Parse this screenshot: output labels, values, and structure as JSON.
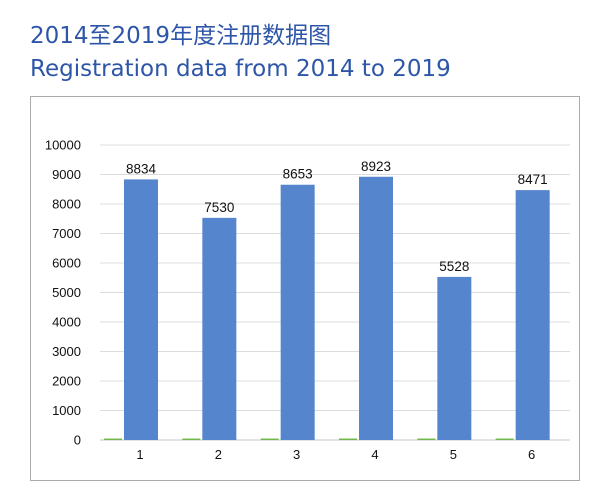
{
  "header": {
    "title_zh": "2014至2019年度注册数据图",
    "title_en": "Registration data from 2014 to 2019"
  },
  "chart_data": {
    "type": "bar",
    "categories": [
      "1",
      "2",
      "3",
      "4",
      "5",
      "6"
    ],
    "series": [
      {
        "values": [
          8834,
          7530,
          8653,
          8923,
          5528,
          8471
        ],
        "color": "#5585cd"
      },
      {
        "values": [
          50,
          50,
          50,
          50,
          50,
          50
        ],
        "color": "#72b84c"
      }
    ],
    "data_labels": [
      "8834",
      "7530",
      "8653",
      "8923",
      "5528",
      "8471"
    ],
    "ylim": [
      0,
      10000
    ],
    "yticks": [
      0,
      1000,
      2000,
      3000,
      4000,
      5000,
      6000,
      7000,
      8000,
      9000,
      10000
    ],
    "grid": true,
    "legend": "none"
  }
}
